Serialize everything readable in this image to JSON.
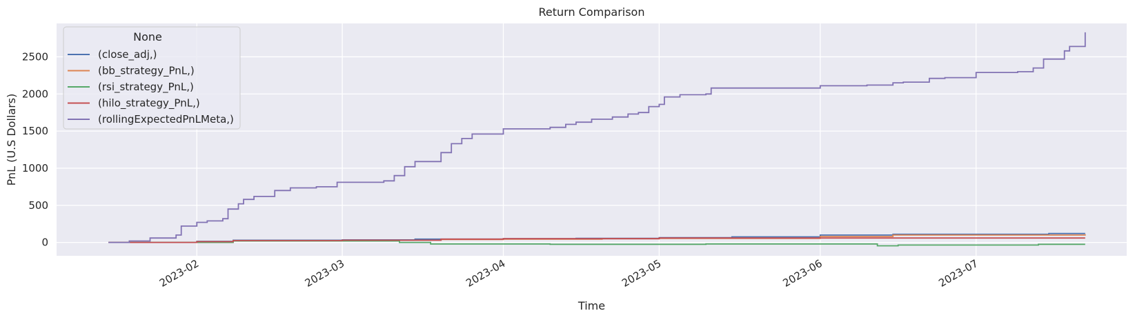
{
  "chart_data": {
    "type": "line",
    "title": "Return Comparison",
    "xlabel": "Time",
    "ylabel": "PnL (U.S Dollars)",
    "legend_title": "None",
    "legend_position": "top-left",
    "grid": true,
    "x_range": [
      "2023-01-05",
      "2023-07-30"
    ],
    "ylim": [
      -180,
      2950
    ],
    "x_ticks": [
      "2023-02-01",
      "2023-03-01",
      "2023-04-01",
      "2023-05-01",
      "2023-06-01",
      "2023-07-01"
    ],
    "x_tick_labels": [
      "2023-02",
      "2023-03",
      "2023-04",
      "2023-05",
      "2023-06",
      "2023-07"
    ],
    "y_ticks": [
      0,
      500,
      1000,
      1500,
      2000,
      2500
    ],
    "y_tick_labels": [
      "0",
      "500",
      "1000",
      "1500",
      "2000",
      "2500"
    ],
    "colors": {
      "background": "#eaeaf2",
      "grid": "#ffffff"
    },
    "series": [
      {
        "name": "(close_adj,)",
        "color": "#4c72b0",
        "x": [
          "2023-01-15",
          "2023-02-01",
          "2023-02-08",
          "2023-03-01",
          "2023-03-15",
          "2023-04-01",
          "2023-04-15",
          "2023-05-01",
          "2023-05-15",
          "2023-06-01",
          "2023-06-15",
          "2023-07-01",
          "2023-07-15",
          "2023-07-22"
        ],
        "y": [
          0,
          15,
          30,
          35,
          45,
          50,
          55,
          65,
          75,
          100,
          110,
          110,
          120,
          120
        ]
      },
      {
        "name": "(bb_strategy_PnL,)",
        "color": "#dd8452",
        "x": [
          "2023-01-15",
          "2023-02-01",
          "2023-02-08",
          "2023-03-01",
          "2023-03-20",
          "2023-04-01",
          "2023-04-20",
          "2023-05-01",
          "2023-06-01",
          "2023-06-15",
          "2023-07-01",
          "2023-07-22"
        ],
        "y": [
          0,
          10,
          25,
          30,
          40,
          45,
          50,
          55,
          80,
          100,
          100,
          110
        ]
      },
      {
        "name": "(rsi_strategy_PnL,)",
        "color": "#55a868",
        "x": [
          "2023-01-15",
          "2023-02-01",
          "2023-02-08",
          "2023-03-01",
          "2023-03-12",
          "2023-03-18",
          "2023-04-01",
          "2023-04-10",
          "2023-05-01",
          "2023-05-10",
          "2023-05-28",
          "2023-06-12",
          "2023-06-16",
          "2023-07-01",
          "2023-07-13",
          "2023-07-22"
        ],
        "y": [
          0,
          0,
          20,
          20,
          0,
          -20,
          -20,
          -25,
          -25,
          -20,
          -20,
          -45,
          -35,
          -35,
          -25,
          -25
        ]
      },
      {
        "name": "(hilo_strategy_PnL,)",
        "color": "#c44e52",
        "x": [
          "2023-01-15",
          "2023-02-01",
          "2023-02-08",
          "2023-03-01",
          "2023-03-20",
          "2023-04-01",
          "2023-05-01",
          "2023-07-22"
        ],
        "y": [
          0,
          10,
          25,
          30,
          45,
          50,
          60,
          60
        ]
      },
      {
        "name": "(rollingExpectedPnLMeta,)",
        "color": "#8172b3",
        "x": [
          "2023-01-15",
          "2023-01-19",
          "2023-01-23",
          "2023-01-28",
          "2023-01-29",
          "2023-02-01",
          "2023-02-03",
          "2023-02-06",
          "2023-02-07",
          "2023-02-09",
          "2023-02-10",
          "2023-02-12",
          "2023-02-16",
          "2023-02-19",
          "2023-02-24",
          "2023-02-28",
          "2023-03-09",
          "2023-03-11",
          "2023-03-13",
          "2023-03-15",
          "2023-03-20",
          "2023-03-22",
          "2023-03-24",
          "2023-03-26",
          "2023-04-01",
          "2023-04-10",
          "2023-04-13",
          "2023-04-15",
          "2023-04-18",
          "2023-04-22",
          "2023-04-25",
          "2023-04-27",
          "2023-04-29",
          "2023-05-01",
          "2023-05-02",
          "2023-05-05",
          "2023-05-10",
          "2023-05-11",
          "2023-05-30",
          "2023-06-01",
          "2023-06-10",
          "2023-06-15",
          "2023-06-17",
          "2023-06-22",
          "2023-06-25",
          "2023-07-01",
          "2023-07-09",
          "2023-07-12",
          "2023-07-14",
          "2023-07-18",
          "2023-07-19",
          "2023-07-22"
        ],
        "y": [
          0,
          20,
          60,
          100,
          220,
          270,
          290,
          320,
          450,
          520,
          580,
          620,
          700,
          735,
          750,
          810,
          830,
          900,
          1020,
          1090,
          1210,
          1330,
          1400,
          1460,
          1530,
          1550,
          1590,
          1620,
          1660,
          1690,
          1730,
          1750,
          1830,
          1860,
          1960,
          1990,
          2000,
          2080,
          2080,
          2110,
          2120,
          2150,
          2160,
          2210,
          2220,
          2290,
          2300,
          2350,
          2470,
          2580,
          2640,
          2830
        ]
      }
    ]
  }
}
